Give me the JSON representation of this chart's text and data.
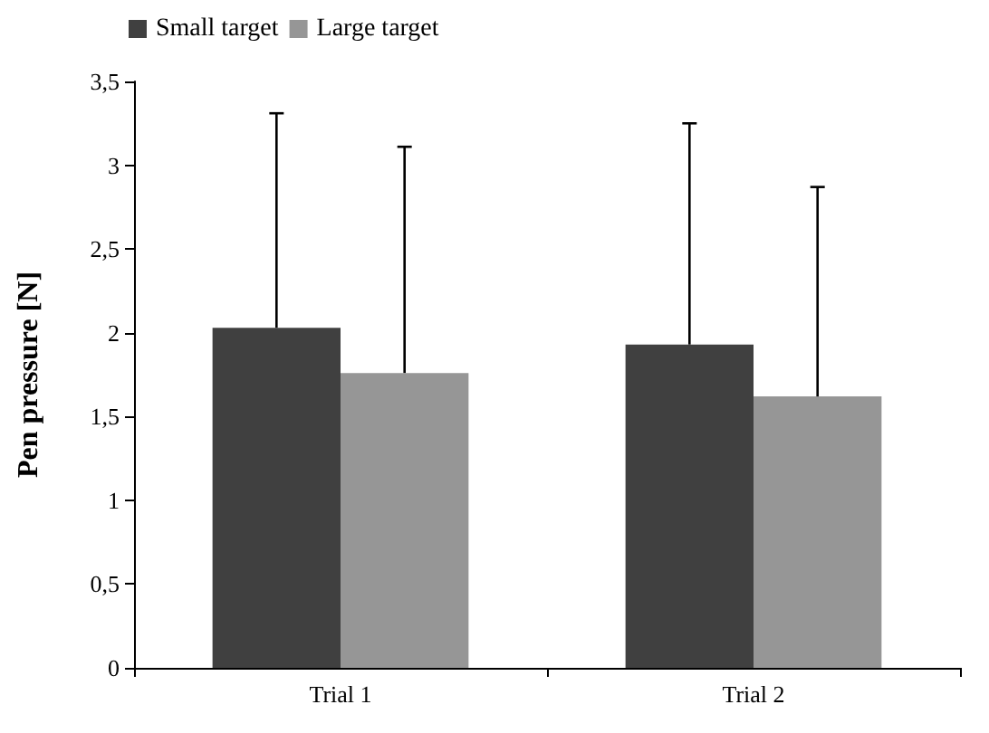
{
  "chart_data": {
    "type": "bar",
    "ylabel": "Pen pressure [N]",
    "categories": [
      "Trial 1",
      "Trial 2"
    ],
    "series": [
      {
        "name": "Small target",
        "color": "#404040",
        "values": [
          2.03,
          1.93
        ],
        "errors": [
          [
            2.03,
            3.31
          ],
          [
            1.93,
            3.25
          ]
        ]
      },
      {
        "name": "Large target",
        "color": "#969696",
        "values": [
          1.76,
          1.62
        ],
        "errors": [
          [
            1.76,
            3.11
          ],
          [
            1.62,
            2.87
          ]
        ]
      }
    ],
    "ylim": [
      0,
      3.5
    ],
    "yticks": [
      0,
      {
        "value": 0.5,
        "label": "0,5"
      },
      1,
      {
        "value": 1.5,
        "label": "1,5"
      },
      2,
      {
        "value": 2.5,
        "label": "2,5"
      },
      3,
      {
        "value": 3.5,
        "label": "3,5"
      }
    ],
    "grid": false,
    "legend": "top left"
  }
}
